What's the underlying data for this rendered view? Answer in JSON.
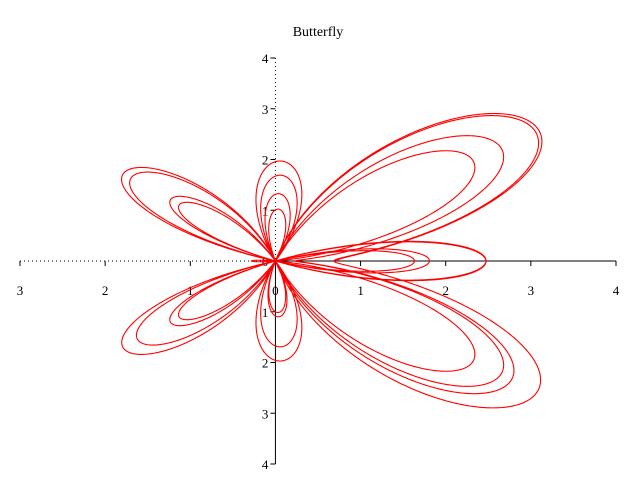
{
  "chart_data": {
    "type": "line",
    "title": "Butterfly",
    "subtitle": "",
    "xlabel": "",
    "ylabel": "",
    "xlim": [
      -3,
      4
    ],
    "ylim": [
      -4,
      4
    ],
    "xticks": [
      -3,
      -2,
      -1,
      0,
      1,
      2,
      3,
      4
    ],
    "yticks": [
      -4,
      -3,
      -2,
      -1,
      0,
      1,
      2,
      3,
      4
    ],
    "xtick_labels": [
      "3",
      "2",
      "1",
      "0",
      "1",
      "2",
      "3",
      "4"
    ],
    "ytick_labels": [
      "4",
      "3",
      "2",
      "1",
      "0",
      "1",
      "2",
      "3",
      "4"
    ],
    "grid": false,
    "legend": "none",
    "series": [
      {
        "kind": "parametric",
        "x": "sin(t)*(e^cos(t) - 2*cos(4t) - sin(t/12)^5)",
        "y": "cos(t)*(e^cos(t) - 2*cos(4t) - sin(t/12)^5)",
        "t_range": [
          0,
          25.1327
        ],
        "color": "#ff0000"
      }
    ]
  }
}
